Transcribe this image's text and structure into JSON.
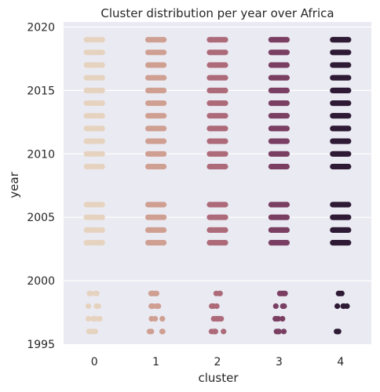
{
  "chart_data": {
    "type": "scatter",
    "style": "strip",
    "title": "Cluster distribution per year over Africa",
    "xlabel": "cluster",
    "ylabel": "year",
    "categories": [
      "0",
      "1",
      "2",
      "3",
      "4"
    ],
    "ylim": [
      1995,
      2020.4
    ],
    "yticks": [
      1995,
      2000,
      2005,
      2010,
      2015,
      2020
    ],
    "grid": true,
    "colors": [
      "#e6d3bf",
      "#cf9f92",
      "#ad6b7a",
      "#7a3f62",
      "#2e1a35"
    ],
    "years": [
      1996,
      1997,
      1998,
      1999,
      2003,
      2004,
      2005,
      2006,
      2009,
      2010,
      2011,
      2012,
      2013,
      2014,
      2015,
      2016,
      2017,
      2018,
      2019
    ],
    "series": [
      {
        "name": "0",
        "years": [
          1996,
          1997,
          1998,
          1999,
          2003,
          2004,
          2005,
          2006,
          2009,
          2010,
          2011,
          2012,
          2013,
          2014,
          2015,
          2016,
          2017,
          2018,
          2019
        ]
      },
      {
        "name": "1",
        "years": [
          1996,
          1997,
          1998,
          1999,
          2003,
          2004,
          2005,
          2006,
          2009,
          2010,
          2011,
          2012,
          2013,
          2014,
          2015,
          2016,
          2017,
          2018,
          2019
        ]
      },
      {
        "name": "2",
        "years": [
          1996,
          1997,
          1998,
          1999,
          2003,
          2004,
          2005,
          2006,
          2009,
          2010,
          2011,
          2012,
          2013,
          2014,
          2015,
          2016,
          2017,
          2018,
          2019
        ]
      },
      {
        "name": "3",
        "years": [
          1996,
          1997,
          1998,
          1999,
          2003,
          2004,
          2005,
          2006,
          2009,
          2010,
          2011,
          2012,
          2013,
          2014,
          2015,
          2016,
          2017,
          2018,
          2019
        ]
      },
      {
        "name": "4",
        "years": [
          1996,
          1998,
          1999,
          2003,
          2004,
          2005,
          2006,
          2009,
          2010,
          2011,
          2012,
          2013,
          2014,
          2015,
          2016,
          2017,
          2018,
          2019
        ]
      }
    ]
  }
}
